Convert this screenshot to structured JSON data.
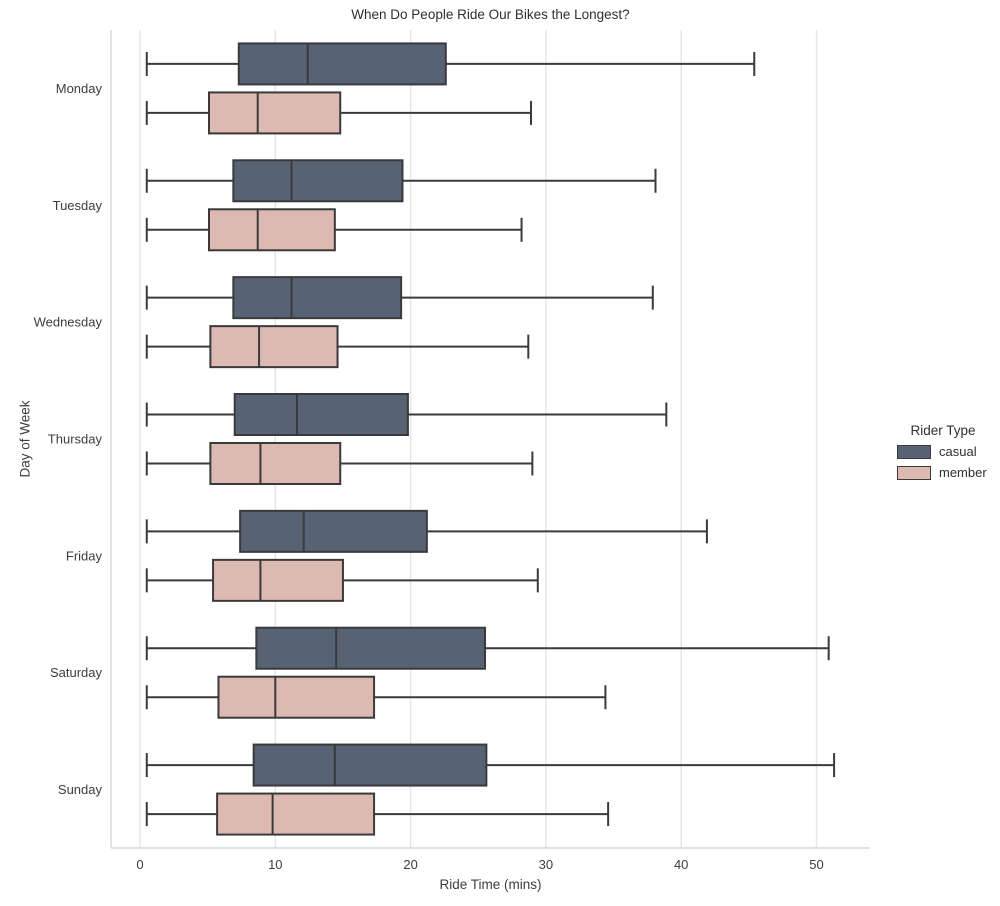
{
  "chart_data": {
    "type": "boxplot",
    "orientation": "horizontal",
    "title": "When Do People Ride Our Bikes the Longest?",
    "xlabel": "Ride Time (mins)",
    "ylabel": "Day of Week",
    "categories": [
      "Monday",
      "Tuesday",
      "Wednesday",
      "Thursday",
      "Friday",
      "Saturday",
      "Sunday"
    ],
    "xticks": [
      0,
      10,
      20,
      30,
      40,
      50
    ],
    "xlim": [
      -2.2,
      54
    ],
    "grid": "vertical-only",
    "show_fliers": false,
    "legend": {
      "title": "Rider Type",
      "position": "center-right-outside",
      "entries": [
        {
          "label": "casual",
          "color": "#586275"
        },
        {
          "label": "member",
          "color": "#DDBAB1"
        }
      ]
    },
    "series": [
      {
        "name": "casual",
        "color": "#586275",
        "boxes": [
          {
            "whislo": 0.5,
            "q1": 7.3,
            "med": 12.4,
            "q3": 22.6,
            "whishi": 45.4
          },
          {
            "whislo": 0.5,
            "q1": 6.9,
            "med": 11.2,
            "q3": 19.4,
            "whishi": 38.1
          },
          {
            "whislo": 0.5,
            "q1": 6.9,
            "med": 11.2,
            "q3": 19.3,
            "whishi": 37.9
          },
          {
            "whislo": 0.5,
            "q1": 7.0,
            "med": 11.6,
            "q3": 19.8,
            "whishi": 38.9
          },
          {
            "whislo": 0.5,
            "q1": 7.4,
            "med": 12.1,
            "q3": 21.2,
            "whishi": 41.9
          },
          {
            "whislo": 0.5,
            "q1": 8.6,
            "med": 14.5,
            "q3": 25.5,
            "whishi": 50.9
          },
          {
            "whislo": 0.5,
            "q1": 8.4,
            "med": 14.4,
            "q3": 25.6,
            "whishi": 51.3
          }
        ]
      },
      {
        "name": "member",
        "color": "#DDBAB1",
        "boxes": [
          {
            "whislo": 0.5,
            "q1": 5.1,
            "med": 8.7,
            "q3": 14.8,
            "whishi": 28.9
          },
          {
            "whislo": 0.5,
            "q1": 5.1,
            "med": 8.7,
            "q3": 14.4,
            "whishi": 28.2
          },
          {
            "whislo": 0.5,
            "q1": 5.2,
            "med": 8.8,
            "q3": 14.6,
            "whishi": 28.7
          },
          {
            "whislo": 0.5,
            "q1": 5.2,
            "med": 8.9,
            "q3": 14.8,
            "whishi": 29.0
          },
          {
            "whislo": 0.5,
            "q1": 5.4,
            "med": 8.9,
            "q3": 15.0,
            "whishi": 29.4
          },
          {
            "whislo": 0.5,
            "q1": 5.8,
            "med": 10.0,
            "q3": 17.3,
            "whishi": 34.4
          },
          {
            "whislo": 0.5,
            "q1": 5.7,
            "med": 9.8,
            "q3": 17.3,
            "whishi": 34.6
          }
        ]
      }
    ],
    "style": {
      "background": "#ffffff",
      "grid_color": "#e4e4ec",
      "spine_color": "#d6d6de",
      "edge_color": "#3a3a3a",
      "text_color": "#3d3d3d"
    }
  }
}
